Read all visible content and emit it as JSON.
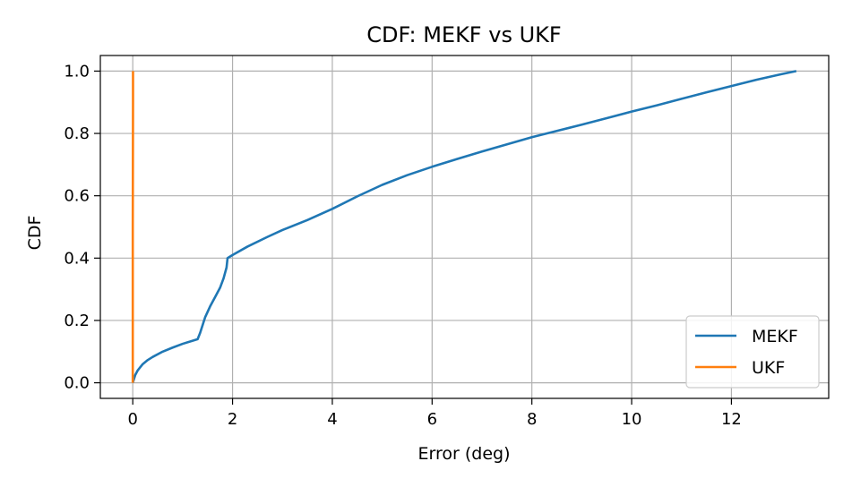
{
  "chart_data": {
    "type": "line",
    "title": "CDF: MEKF vs UKF",
    "xlabel": "Error (deg)",
    "ylabel": "CDF",
    "xlim": [
      -0.65,
      13.95
    ],
    "ylim": [
      -0.05,
      1.05
    ],
    "x_ticks": [
      0,
      2,
      4,
      6,
      8,
      10,
      12
    ],
    "y_ticks": [
      0.0,
      0.2,
      0.4,
      0.6,
      0.8,
      1.0
    ],
    "x_tick_labels": [
      "0",
      "2",
      "4",
      "6",
      "8",
      "10",
      "12"
    ],
    "y_tick_labels": [
      "0.0",
      "0.2",
      "0.4",
      "0.6",
      "0.8",
      "1.0"
    ],
    "grid": true,
    "legend_position": "lower-right",
    "series": [
      {
        "name": "MEKF",
        "color": "#1f77b4",
        "x": [
          0.0,
          0.05,
          0.1,
          0.2,
          0.3,
          0.4,
          0.6,
          0.8,
          1.0,
          1.2,
          1.3,
          1.35,
          1.45,
          1.55,
          1.65,
          1.75,
          1.82,
          1.88,
          1.9,
          2.0,
          2.3,
          2.7,
          3.0,
          3.5,
          4.0,
          4.5,
          5.0,
          5.5,
          6.0,
          6.5,
          7.0,
          7.5,
          8.0,
          8.5,
          9.0,
          9.5,
          10.0,
          10.5,
          11.0,
          11.5,
          12.0,
          12.5,
          13.0,
          13.3
        ],
        "y": [
          0.0,
          0.025,
          0.04,
          0.06,
          0.073,
          0.083,
          0.1,
          0.113,
          0.125,
          0.135,
          0.14,
          0.16,
          0.21,
          0.245,
          0.275,
          0.305,
          0.335,
          0.37,
          0.4,
          0.41,
          0.437,
          0.468,
          0.49,
          0.522,
          0.558,
          0.598,
          0.635,
          0.666,
          0.693,
          0.718,
          0.742,
          0.765,
          0.788,
          0.808,
          0.828,
          0.849,
          0.87,
          0.89,
          0.911,
          0.932,
          0.952,
          0.972,
          0.99,
          1.0
        ]
      },
      {
        "name": "UKF",
        "color": "#ff7f0e",
        "x": [
          0.0,
          0.0,
          0.005,
          0.005
        ],
        "y": [
          0.0,
          0.5,
          0.9,
          1.0
        ]
      }
    ]
  }
}
